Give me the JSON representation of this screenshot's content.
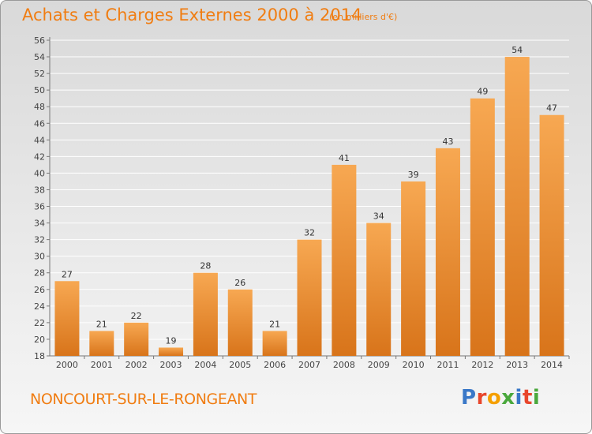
{
  "header": {
    "title": "Achats et Charges Externes 2000 à 2014",
    "unit": "(en milliers d'€)"
  },
  "footer": {
    "commune": "NONCOURT-SUR-LE-RONGEANT",
    "brand": "Proxiti",
    "brand_colors": [
      "#3a78c8",
      "#e8462c",
      "#f5a000",
      "#4aa83c",
      "#3a78c8",
      "#e8462c",
      "#4aa83c"
    ]
  },
  "colors": {
    "bar_light": "#f7a852",
    "bar_dark": "#d8741a",
    "title": "#f07d12"
  },
  "chart_data": {
    "type": "bar",
    "categories": [
      "2000",
      "2001",
      "2002",
      "2003",
      "2004",
      "2005",
      "2006",
      "2007",
      "2008",
      "2009",
      "2010",
      "2011",
      "2012",
      "2013",
      "2014"
    ],
    "values": [
      27,
      21,
      22,
      19,
      28,
      26,
      21,
      32,
      41,
      34,
      39,
      43,
      49,
      54,
      47
    ],
    "title": "Achats et Charges Externes 2000 à 2014",
    "ylim": [
      18,
      56
    ],
    "yticks": [
      18,
      20,
      22,
      24,
      26,
      28,
      30,
      32,
      34,
      36,
      38,
      40,
      42,
      44,
      46,
      48,
      50,
      52,
      54,
      56
    ],
    "grid": true
  }
}
